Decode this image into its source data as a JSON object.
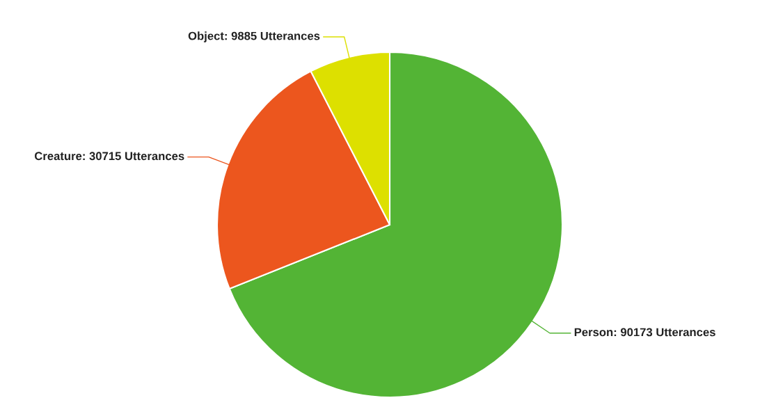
{
  "chart_data": {
    "type": "pie",
    "categories": [
      "Person: 90173 Utterances",
      "Creature: 30715 Utterances",
      "Object: 9885 Utterances"
    ],
    "values": [
      90173,
      30715,
      9885
    ],
    "colors": [
      "#53b435",
      "#ec561e",
      "#dde000"
    ]
  }
}
